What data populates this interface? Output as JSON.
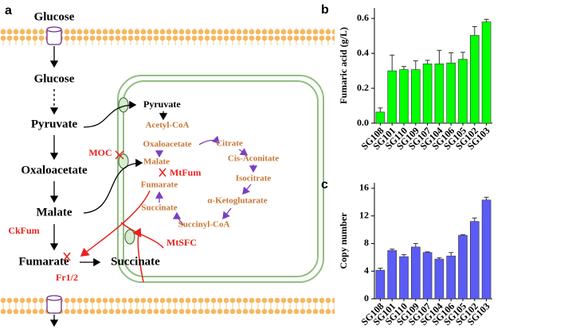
{
  "diagram": {
    "panel_label": "a",
    "cytosol": [
      "Glucose",
      "Glucose",
      "Pyruvate",
      "Oxaloacetate",
      "Malate",
      "Fumarate",
      "Succinate"
    ],
    "mitochondrion": [
      "Pyruvate",
      "Acetyl-CoA",
      "Oxaloacetate",
      "Citrate",
      "Malate",
      "Cis-Aconitate",
      "Fumarate",
      "Isocitrate",
      "Succinate",
      "α-Ketoglutarate",
      "Succinyl-CoA"
    ],
    "enzymes": [
      "MOC",
      "MtFum",
      "CkFum",
      "MtSFC",
      "Fr1/2"
    ]
  },
  "chart_data": [
    {
      "type": "bar",
      "panel_label": "b",
      "y_label": "Fumaric acid (g/L)",
      "color": "#00ff00",
      "categories": [
        "SG108",
        "SG101",
        "SG110",
        "SG109",
        "SG107",
        "SG104",
        "SG106",
        "SG105",
        "SG102",
        "SG103"
      ],
      "values": [
        0.064,
        0.3,
        0.307,
        0.307,
        0.34,
        0.34,
        0.345,
        0.366,
        0.503,
        0.58
      ],
      "errors": [
        0.023,
        0.09,
        0.018,
        0.05,
        0.02,
        0.077,
        0.058,
        0.04,
        0.05,
        0.015
      ],
      "ylim": [
        0,
        0.66
      ],
      "yticks": [
        {
          "value": 0,
          "label": "0.0"
        },
        {
          "value": 0.2,
          "label": "0.2"
        },
        {
          "value": 0.4,
          "label": "0.4"
        },
        {
          "value": 0.6,
          "label": "0.6"
        }
      ]
    },
    {
      "type": "bar",
      "panel_label": "c",
      "y_label": "Copy number",
      "color": "#5b5bf5",
      "categories": [
        "SG108",
        "SG101",
        "SG110",
        "SG109",
        "SG107",
        "SG104",
        "SG106",
        "SG105",
        "SG102",
        "SG103"
      ],
      "values": [
        4.14,
        7.0,
        6.1,
        7.5,
        6.7,
        5.75,
        6.2,
        9.2,
        11.2,
        14.3
      ],
      "errors": [
        0.3,
        0.2,
        0.3,
        0.5,
        0.1,
        0.2,
        0.5,
        0.1,
        0.5,
        0.4
      ],
      "ylim": [
        0,
        16.8
      ],
      "yticks": [
        0,
        4,
        8,
        12,
        16
      ]
    }
  ]
}
